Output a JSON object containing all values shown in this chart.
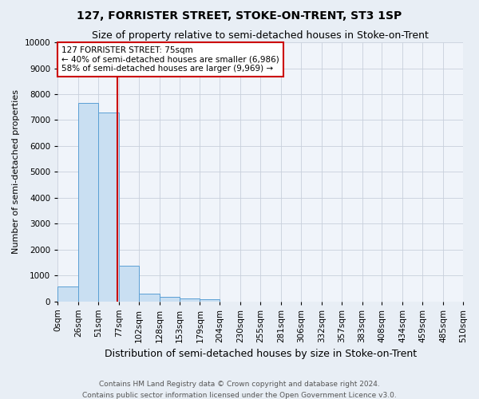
{
  "title": "127, FORRISTER STREET, STOKE-ON-TRENT, ST3 1SP",
  "subtitle": "Size of property relative to semi-detached houses in Stoke-on-Trent",
  "xlabel": "Distribution of semi-detached houses by size in Stoke-on-Trent",
  "ylabel": "Number of semi-detached properties",
  "bar_labels": [
    "0sqm",
    "26sqm",
    "51sqm",
    "77sqm",
    "102sqm",
    "128sqm",
    "153sqm",
    "179sqm",
    "204sqm",
    "230sqm",
    "255sqm",
    "281sqm",
    "306sqm",
    "332sqm",
    "357sqm",
    "383sqm",
    "408sqm",
    "434sqm",
    "459sqm",
    "485sqm",
    "510sqm"
  ],
  "bar_values": [
    570,
    7650,
    7280,
    1360,
    290,
    155,
    100,
    80,
    0,
    0,
    0,
    0,
    0,
    0,
    0,
    0,
    0,
    0,
    0,
    0
  ],
  "bin_edges": [
    0,
    26,
    51,
    77,
    102,
    128,
    153,
    179,
    204,
    230,
    255,
    281,
    306,
    332,
    357,
    383,
    408,
    434,
    459,
    485,
    510
  ],
  "bar_color": "#c9dff2",
  "bar_edge_color": "#5a9fd4",
  "property_line_x": 75,
  "annotation_text": "127 FORRISTER STREET: 75sqm\n← 40% of semi-detached houses are smaller (6,986)\n58% of semi-detached houses are larger (9,969) →",
  "annotation_box_color": "#ffffff",
  "annotation_box_edge": "#cc0000",
  "vline_color": "#cc0000",
  "ylim": [
    0,
    10000
  ],
  "yticks": [
    0,
    1000,
    2000,
    3000,
    4000,
    5000,
    6000,
    7000,
    8000,
    9000,
    10000
  ],
  "footer_line1": "Contains HM Land Registry data © Crown copyright and database right 2024.",
  "footer_line2": "Contains public sector information licensed under the Open Government Licence v3.0.",
  "bg_color": "#e8eef5",
  "plot_bg_color": "#f0f4fa",
  "grid_color": "#c8d0dc",
  "title_fontsize": 10,
  "subtitle_fontsize": 9,
  "xlabel_fontsize": 9,
  "ylabel_fontsize": 8,
  "tick_fontsize": 7.5,
  "annotation_fontsize": 7.5,
  "footer_fontsize": 6.5
}
